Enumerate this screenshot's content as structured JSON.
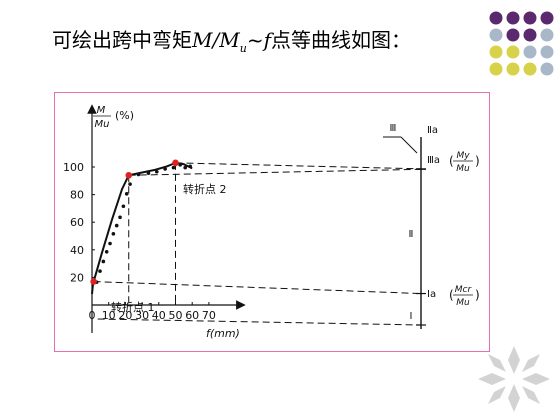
{
  "slide": {
    "title_prefix": "可绘出跨中弯矩",
    "title_m": "M",
    "title_slash": "/",
    "title_mu_base": "M",
    "title_mu_sub": "u",
    "title_tilde": "~",
    "title_f": "f",
    "title_suffix": "点等曲线如图："
  },
  "dot_grid_colors": [
    [
      "#5b2a6e",
      "#5b2a6e",
      "#5b2a6e",
      "#5b2a6e"
    ],
    [
      "#a9b8c8",
      "#5b2a6e",
      "#5b2a6e",
      "#a9b8c8"
    ],
    [
      "#d8d24a",
      "#d8d24a",
      "#a9b8c8",
      "#a9b8c8"
    ],
    [
      "#d8d24a",
      "#d8d24a",
      "#d8d24a",
      "#a9b8c8"
    ]
  ],
  "chart_data": {
    "type": "line",
    "xlabel": "f(mm)",
    "ylabel_num": "M",
    "ylabel_den": "Mu",
    "ylabel_unit": "(%)",
    "xlim": [
      0,
      70
    ],
    "ylim": [
      0,
      100
    ],
    "x_ticks": [
      0,
      10,
      20,
      30,
      40,
      50,
      60,
      70
    ],
    "y_ticks": [
      20,
      40,
      60,
      80,
      100
    ],
    "series": [
      {
        "style": "solid",
        "x": [
          0,
          0.5,
          1,
          6,
          12,
          18,
          22,
          30,
          38,
          45,
          50,
          55,
          60
        ],
        "y": [
          8,
          14,
          17,
          38,
          62,
          84,
          94,
          96,
          98,
          100.5,
          103,
          102,
          99
        ]
      }
    ],
    "measured_points": {
      "x": [
        1,
        3,
        5,
        7,
        9,
        11,
        13,
        15,
        17,
        19,
        21,
        26,
        32,
        37,
        42,
        47,
        51,
        54,
        57
      ],
      "y": [
        18,
        26,
        33,
        40,
        46,
        53,
        59,
        65,
        73,
        82,
        89,
        96,
        97,
        98,
        100,
        101,
        103,
        101,
        102
      ]
    },
    "turning_points": [
      {
        "x": 1,
        "y": 17,
        "label": "转折点 1"
      },
      {
        "x": 22,
        "y": 94,
        "label": "转折点 2"
      },
      {
        "x": 50,
        "y": 103
      }
    ],
    "annotations": {
      "stage_labels": {
        "II_a": "Ⅱa",
        "III": "Ⅲ",
        "III_a": "Ⅲa",
        "II": "Ⅱ",
        "I_a": "Ⅰa",
        "I": "Ⅰ"
      },
      "y_label": {
        "num": "My",
        "den": "Mu"
      },
      "cr_label": {
        "num": "Mcr",
        "den": "Mu"
      }
    }
  }
}
